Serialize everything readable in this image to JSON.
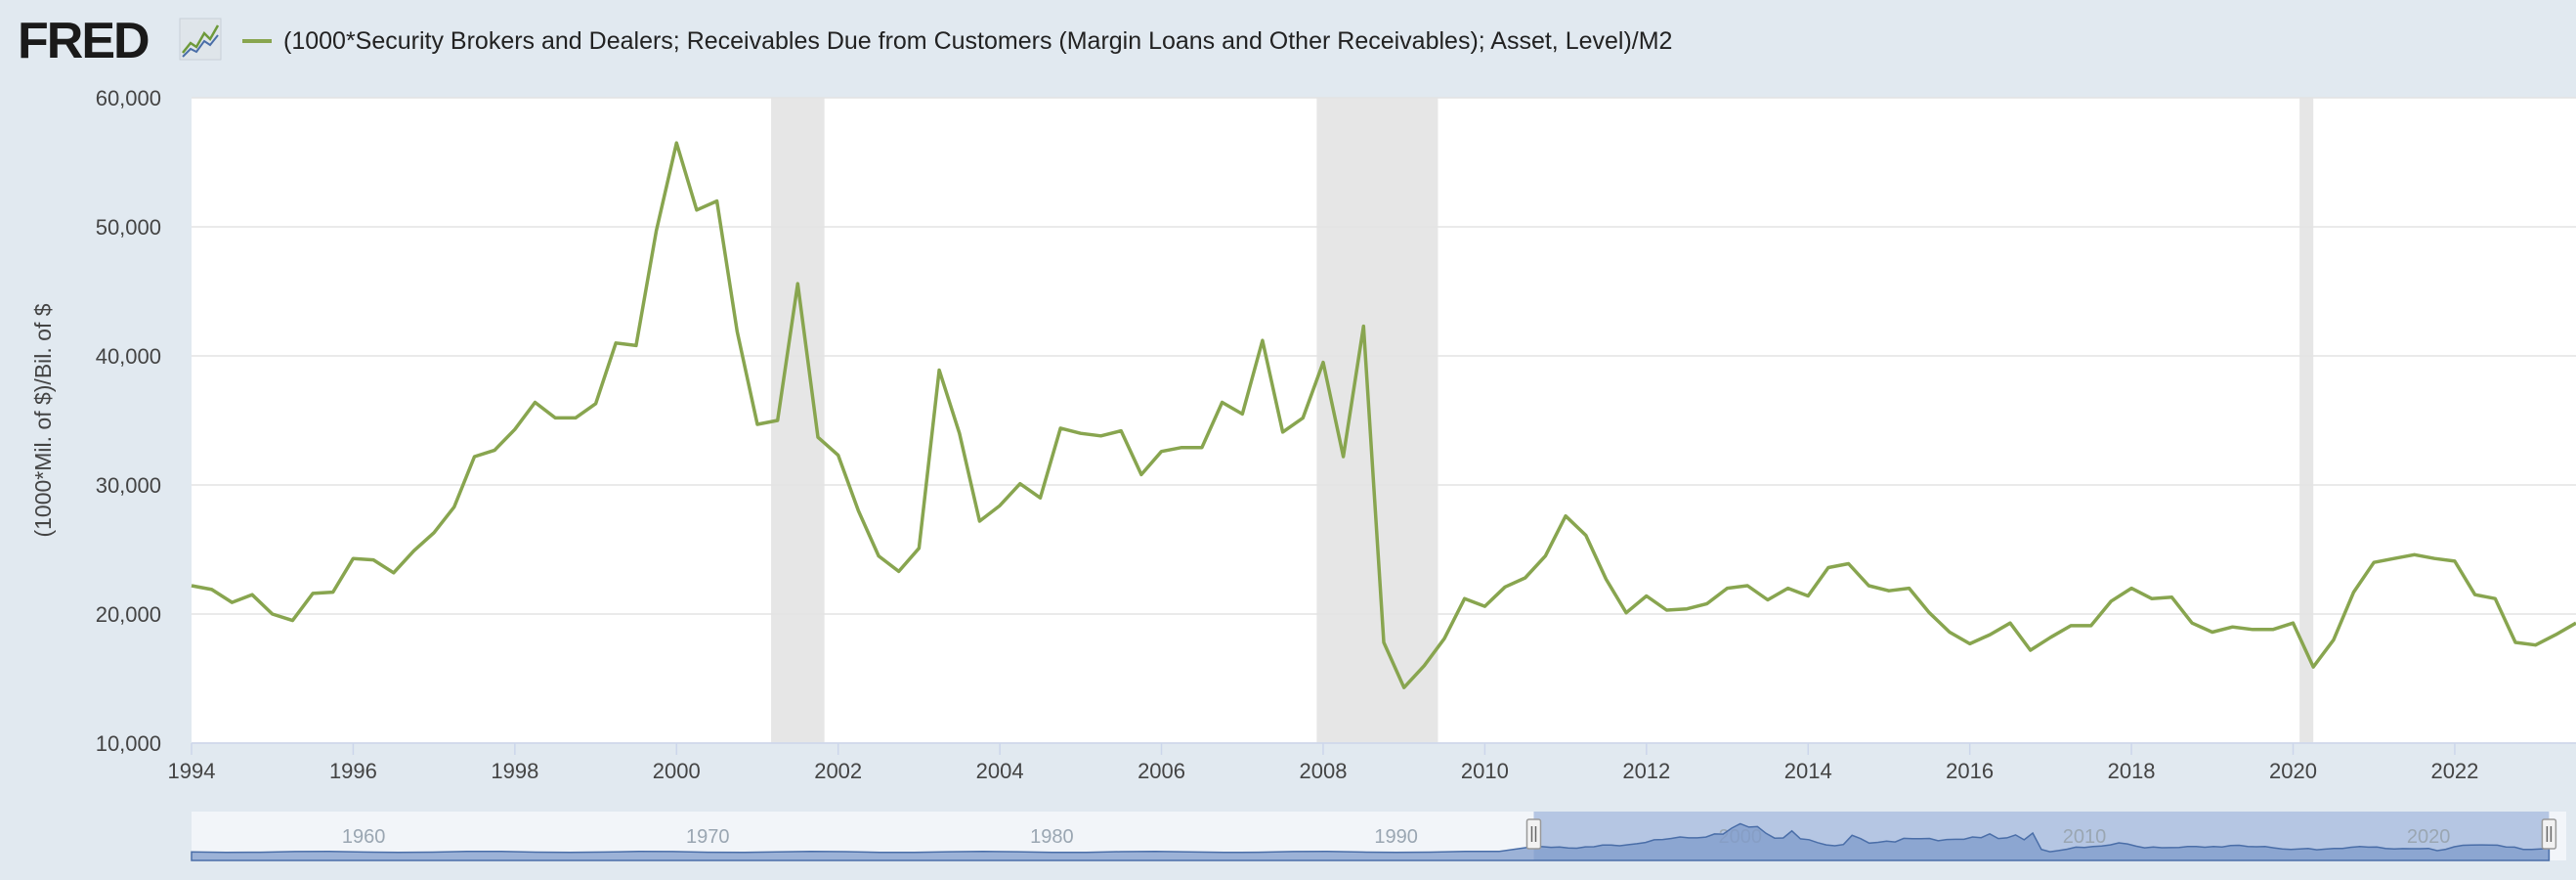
{
  "header": {
    "logo_text": "FRED",
    "logo_icon": "line-chart-icon",
    "legend_label": "(1000*Security Brokers and Dealers; Receivables Due from Customers (Margin Loans and Other Receivables); Asset, Level)/M2"
  },
  "colors": {
    "series": "#88a54f",
    "recession": "#e6e6e6",
    "background": "#e1e9f0",
    "navigator_fill": "#7f9bcb",
    "navigator_window": "#b5c6e3"
  },
  "chart_data": {
    "type": "line",
    "title": "",
    "xlabel": "",
    "ylabel": "(1000*Mil. of $)/Bil. of $",
    "xlim": [
      1994.0,
      2023.5
    ],
    "ylim": [
      10000,
      60000
    ],
    "yticks": [
      "10,000",
      "20,000",
      "30,000",
      "40,000",
      "50,000",
      "60,000"
    ],
    "xticks": [
      "1994",
      "1996",
      "1998",
      "2000",
      "2002",
      "2004",
      "2006",
      "2008",
      "2010",
      "2012",
      "2014",
      "2016",
      "2018",
      "2020",
      "2022"
    ],
    "grid": true,
    "legend_position": "top-left",
    "recessions": [
      [
        2001.17,
        2001.83
      ],
      [
        2007.92,
        2009.42
      ],
      [
        2020.08,
        2020.25
      ]
    ],
    "series": [
      {
        "name": "(1000*Security Brokers and Dealers; Receivables Due from Customers (Margin Loans and Other Receivables); Asset, Level)/M2",
        "x": [
          1994.0,
          1994.25,
          1994.5,
          1994.75,
          1995.0,
          1995.25,
          1995.5,
          1995.75,
          1996.0,
          1996.25,
          1996.5,
          1996.75,
          1997.0,
          1997.25,
          1997.5,
          1997.75,
          1998.0,
          1998.25,
          1998.5,
          1998.75,
          1999.0,
          1999.25,
          1999.5,
          1999.75,
          2000.0,
          2000.25,
          2000.5,
          2000.75,
          2001.0,
          2001.25,
          2001.5,
          2001.75,
          2002.0,
          2002.25,
          2002.5,
          2002.75,
          2003.0,
          2003.25,
          2003.5,
          2003.75,
          2004.0,
          2004.25,
          2004.5,
          2004.75,
          2005.0,
          2005.25,
          2005.5,
          2005.75,
          2006.0,
          2006.25,
          2006.5,
          2006.75,
          2007.0,
          2007.25,
          2007.5,
          2007.75,
          2008.0,
          2008.25,
          2008.5,
          2008.75,
          2009.0,
          2009.25,
          2009.5,
          2009.75,
          2010.0,
          2010.25,
          2010.5,
          2010.75,
          2011.0,
          2011.25,
          2011.5,
          2011.75,
          2012.0,
          2012.25,
          2012.5,
          2012.75,
          2013.0,
          2013.25,
          2013.5,
          2013.75,
          2014.0,
          2014.25,
          2014.5,
          2014.75,
          2015.0,
          2015.25,
          2015.5,
          2015.75,
          2016.0,
          2016.25,
          2016.5,
          2016.75,
          2017.0,
          2017.25,
          2017.5,
          2017.75,
          2018.0,
          2018.25,
          2018.5,
          2018.75,
          2019.0,
          2019.25,
          2019.5,
          2019.75,
          2020.0,
          2020.25,
          2020.5,
          2020.75,
          2021.0,
          2021.25,
          2021.5,
          2021.75,
          2022.0,
          2022.25,
          2022.5,
          2022.75,
          2023.0,
          2023.25,
          2023.5
        ],
        "values": [
          22200,
          21900,
          20900,
          21500,
          20000,
          19500,
          21600,
          21700,
          24300,
          24200,
          23200,
          24900,
          26300,
          28300,
          32200,
          32700,
          34300,
          36400,
          35200,
          35200,
          36300,
          41000,
          40800,
          49700,
          56500,
          51300,
          52000,
          41900,
          34700,
          35000,
          45600,
          33700,
          32300,
          28000,
          24500,
          23300,
          25100,
          38900,
          34000,
          27200,
          28400,
          30100,
          29000,
          34400,
          34000,
          33800,
          34200,
          30800,
          32600,
          32900,
          32900,
          36400,
          35500,
          41200,
          34100,
          35200,
          39500,
          32200,
          42300,
          17800,
          14300,
          16000,
          18100,
          21200,
          20600,
          22100,
          22800,
          24500,
          27600,
          26100,
          22700,
          20100,
          21400,
          20300,
          20400,
          20800,
          22000,
          22200,
          21100,
          22000,
          21400,
          23600,
          23900,
          22200,
          21800,
          22000,
          20100,
          18600,
          17700,
          18400,
          19300,
          17200,
          18200,
          19100,
          19100,
          21000,
          22000,
          21200,
          21300,
          19300,
          18600,
          19000,
          18800,
          18800,
          19300,
          15900,
          18000,
          21700,
          24000,
          24300,
          24600,
          24300,
          24100,
          21500,
          21200,
          17800,
          17600,
          18400,
          19300
        ]
      }
    ],
    "navigator": {
      "xticks": [
        "1960",
        "1970",
        "1980",
        "1990",
        "2000",
        "2010",
        "2020"
      ],
      "window": [
        1994.0,
        2023.5
      ]
    }
  }
}
